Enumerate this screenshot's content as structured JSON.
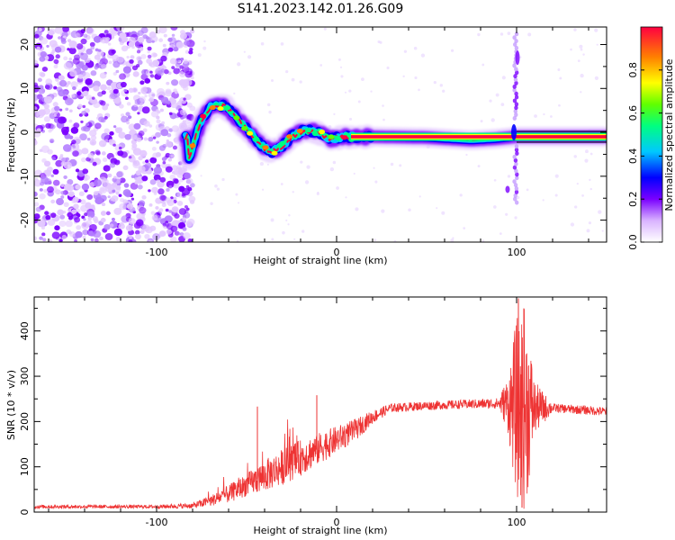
{
  "figure_title": "S141.2023.142.01.26.G09",
  "chart_data": [
    {
      "type": "heatmap",
      "title": "S141.2023.142.01.26.G09",
      "xlabel": "Height of straight line (km)",
      "ylabel": "Frequency (Hz)",
      "xlim": [
        -168,
        150
      ],
      "ylim": [
        -25,
        24
      ],
      "xticks": [
        -100,
        0,
        100
      ],
      "yticks": [
        -20,
        -10,
        0,
        10,
        20
      ],
      "colorbar": {
        "label": "Normalized spectral amplitude",
        "range": [
          0.0,
          1.0
        ],
        "ticks": [
          0.0,
          0.2,
          0.4,
          0.6,
          0.8
        ],
        "colormap": [
          "#ffffff",
          "#d9b3ff",
          "#7a00ff",
          "#0000ff",
          "#00c8ff",
          "#00ff80",
          "#60ff00",
          "#ffff00",
          "#ff8000",
          "#ff0040"
        ]
      },
      "ridge": {
        "description_points": [
          {
            "x": -82,
            "y": -6
          },
          {
            "x": -76,
            "y": 2
          },
          {
            "x": -70,
            "y": 6
          },
          {
            "x": -62,
            "y": 6
          },
          {
            "x": -55,
            "y": 3
          },
          {
            "x": -48,
            "y": 0
          },
          {
            "x": -42,
            "y": -3
          },
          {
            "x": -36,
            "y": -4.5
          },
          {
            "x": -30,
            "y": -3
          },
          {
            "x": -25,
            "y": -1
          },
          {
            "x": -18,
            "y": 0.5
          },
          {
            "x": -10,
            "y": 0
          },
          {
            "x": -4,
            "y": -1.5
          },
          {
            "x": 5,
            "y": -1
          },
          {
            "x": 20,
            "y": -1
          },
          {
            "x": 50,
            "y": -1.2
          },
          {
            "x": 75,
            "y": -1.8
          },
          {
            "x": 88,
            "y": -1.5
          },
          {
            "x": 100,
            "y": -1
          },
          {
            "x": 150,
            "y": -1
          }
        ]
      }
    },
    {
      "type": "line",
      "xlabel": "Height of straight line (km)",
      "ylabel": "SNR (10 * v/v)",
      "xlim": [
        -168,
        150
      ],
      "ylim": [
        0,
        475
      ],
      "xticks": [
        -100,
        0,
        100
      ],
      "yticks": [
        0,
        100,
        200,
        300,
        400
      ],
      "line_color": "#ee3333",
      "envelope": {
        "x": [
          -168,
          -100,
          -80,
          -70,
          -60,
          -50,
          -40,
          -30,
          -20,
          -10,
          0,
          10,
          20,
          30,
          50,
          70,
          90,
          95,
          100,
          105,
          110,
          120,
          150
        ],
        "base": [
          12,
          12,
          14,
          25,
          40,
          60,
          80,
          100,
          120,
          140,
          160,
          180,
          210,
          230,
          235,
          238,
          240,
          240,
          230,
          230,
          230,
          230,
          222
        ],
        "spread": [
          4,
          4,
          6,
          12,
          20,
          25,
          35,
          40,
          40,
          35,
          30,
          25,
          15,
          10,
          10,
          10,
          12,
          60,
          200,
          230,
          60,
          10,
          10
        ]
      },
      "spikes": [
        {
          "x": -44,
          "y": 233
        },
        {
          "x": -11,
          "y": 258
        },
        {
          "x": 101,
          "y": 472
        },
        {
          "x": 104,
          "y": 450
        },
        {
          "x": 103,
          "y": 10
        }
      ]
    }
  ]
}
